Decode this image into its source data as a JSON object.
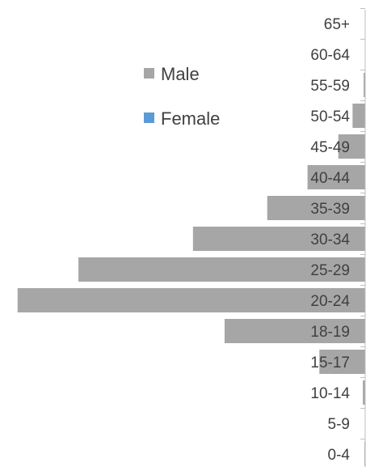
{
  "chart_data": {
    "type": "bar",
    "orientation": "horizontal",
    "chart_style": "population pyramid",
    "categories": [
      "65+",
      "60-64",
      "55-59",
      "50-54",
      "45-49",
      "40-44",
      "35-39",
      "30-34",
      "25-29",
      "20-24",
      "18-19",
      "15-17",
      "10-14",
      "5-9",
      "0-4"
    ],
    "series": [
      {
        "name": "Male",
        "color": "#a6a6a6",
        "values": [
          0,
          0,
          2,
          16,
          34,
          73,
          124,
          218,
          363,
          440,
          178,
          58,
          3,
          0,
          1
        ]
      },
      {
        "name": "Female",
        "color": "#5b9bd5",
        "values": [
          0,
          0,
          0,
          0,
          0,
          0,
          0,
          0,
          0,
          0,
          0,
          0,
          0,
          0,
          0
        ]
      }
    ],
    "xlim": [
      0,
      450
    ],
    "grid": false,
    "legend_position": "top-left"
  }
}
